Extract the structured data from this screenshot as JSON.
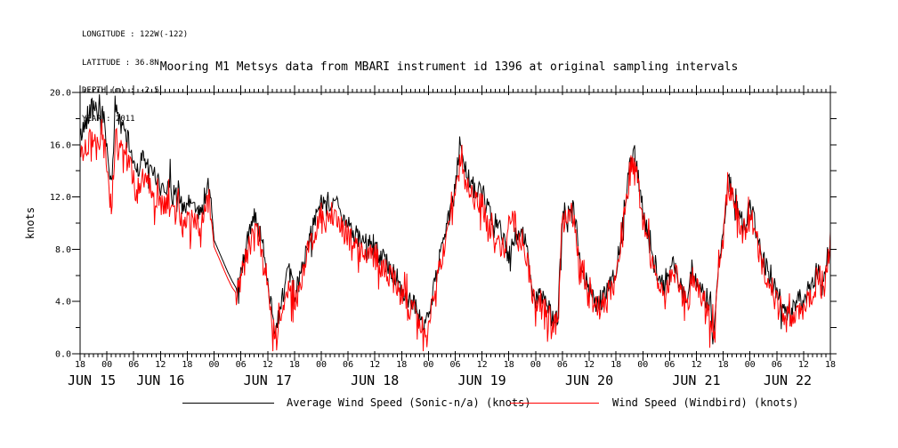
{
  "meta": {
    "lines": [
      "LONGITUDE : 122W(-122)",
      "LATITUDE : 36.8N",
      "DEPTH (m) : -2.5",
      "YEAR : 2011"
    ]
  },
  "title": "Mooring M1 Metsys data from MBARI instrument id 1396 at original sampling intervals",
  "chart_data": {
    "type": "line",
    "title": "Mooring M1 Metsys data from MBARI instrument id 1396 at original sampling intervals",
    "ylabel": "knots",
    "ylim": [
      0,
      20
    ],
    "y_major_ticks": [
      0,
      4,
      8,
      12,
      16,
      20
    ],
    "y_tick_labels": [
      "0.0",
      "4.0",
      "8.0",
      "12.0",
      "16.0",
      "20.0"
    ],
    "y_minor_step_knots": 2,
    "x_start": "2011 JUN 15 18:00",
    "x_end": "2011 JUN 22 18:00",
    "x_span_hours": 168,
    "x_major_tick_hours": 6,
    "x_minor_tick_hours": 1,
    "grid": false,
    "legend_position": "below-axis",
    "hour_tick_labels": [
      "18",
      "00",
      "06",
      "12",
      "18",
      "00",
      "06",
      "12",
      "18",
      "00",
      "06",
      "12",
      "18",
      "00",
      "06",
      "12",
      "18",
      "00",
      "06",
      "12",
      "18",
      "00",
      "06",
      "12",
      "18",
      "00",
      "06",
      "12",
      "18"
    ],
    "date_labels": [
      "JUN 15",
      "JUN 16",
      "JUN 17",
      "JUN 18",
      "JUN 19",
      "JUN 20",
      "JUN 21",
      "JUN 22"
    ],
    "data_gap_hours_since_start": [
      29.4,
      35.0
    ],
    "values_are": "estimated wind speed in knots at 1-hour spacing, hours since 2011 JUN 15 18:00",
    "noise_scatter_knots": [
      0.8,
      1.0
    ],
    "series": [
      {
        "name": "Average Wind Speed (Sonic-n/a) (knots)",
        "color": "#000000",
        "step_hours": 1,
        "values": [
          16.5,
          17.5,
          18.5,
          19.3,
          18.5,
          18.8,
          16.0,
          12.5,
          19.0,
          17.5,
          17.0,
          16.0,
          14.6,
          14.2,
          15.0,
          14.5,
          13.8,
          13.5,
          12.8,
          12.4,
          13.5,
          11.5,
          13.0,
          10.8,
          11.2,
          11.8,
          11.0,
          10.6,
          12.5,
          13.0,
          8.7,
          7.9,
          7.1,
          6.3,
          5.6,
          5.0,
          6.5,
          7.8,
          9.5,
          11.0,
          9.5,
          8.0,
          6.0,
          3.0,
          2.0,
          4.0,
          5.5,
          6.2,
          4.5,
          5.5,
          7.0,
          8.5,
          9.5,
          10.7,
          11.5,
          11.0,
          11.4,
          11.8,
          11.0,
          10.3,
          10.0,
          9.4,
          9.0,
          8.5,
          8.4,
          8.3,
          8.0,
          7.6,
          7.2,
          6.9,
          6.3,
          5.8,
          5.0,
          4.4,
          4.0,
          3.7,
          3.0,
          2.5,
          2.8,
          4.5,
          6.5,
          8.0,
          9.5,
          11.0,
          12.5,
          16.0,
          14.5,
          13.7,
          12.8,
          12.3,
          12.6,
          11.2,
          10.5,
          10.0,
          9.7,
          8.5,
          7.5,
          8.5,
          9.3,
          9.6,
          8.0,
          5.5,
          4.2,
          4.6,
          3.9,
          3.3,
          2.6,
          2.8,
          11.0,
          10.7,
          11.5,
          10.0,
          7.0,
          5.8,
          4.8,
          4.2,
          3.5,
          4.2,
          5.0,
          5.3,
          6.5,
          8.5,
          11.5,
          14.5,
          15.6,
          13.5,
          11.0,
          9.2,
          7.5,
          6.5,
          5.5,
          5.0,
          6.0,
          7.1,
          6.0,
          4.8,
          4.0,
          6.5,
          5.5,
          5.0,
          4.2,
          3.5,
          1.5,
          6.5,
          9.2,
          13.5,
          12.5,
          11.2,
          10.5,
          9.8,
          11.5,
          10.0,
          8.5,
          7.0,
          6.2,
          5.5,
          4.6,
          4.0,
          3.3,
          2.8,
          3.7,
          4.2,
          4.0,
          4.8,
          5.3,
          6.5,
          5.8,
          6.8,
          9.0
        ]
      },
      {
        "name": "Wind Speed (Windbird) (knots)",
        "color": "#ff0000",
        "step_hours": 1,
        "values": [
          15.2,
          16.0,
          16.3,
          16.5,
          16.3,
          16.6,
          14.5,
          10.9,
          16.6,
          15.6,
          15.2,
          14.4,
          13.2,
          12.9,
          13.6,
          13.2,
          12.5,
          12.2,
          11.6,
          11.2,
          12.2,
          10.3,
          11.7,
          9.7,
          10.1,
          10.6,
          9.9,
          9.5,
          11.3,
          11.8,
          8.2,
          7.4,
          6.6,
          5.8,
          5.1,
          4.6,
          5.9,
          7.1,
          8.7,
          10.1,
          8.7,
          7.2,
          5.3,
          2.4,
          1.2,
          3.3,
          4.8,
          5.5,
          3.8,
          4.8,
          6.3,
          7.7,
          8.7,
          9.9,
          10.6,
          10.1,
          10.5,
          10.9,
          10.1,
          9.4,
          9.1,
          8.6,
          8.2,
          7.7,
          7.6,
          7.5,
          7.2,
          6.9,
          6.5,
          6.2,
          5.7,
          5.2,
          4.5,
          3.9,
          3.5,
          3.2,
          2.6,
          2.1,
          2.4,
          4.0,
          5.9,
          7.3,
          8.7,
          10.1,
          11.5,
          14.6,
          13.3,
          12.6,
          11.8,
          11.3,
          11.6,
          10.3,
          9.6,
          9.2,
          8.9,
          7.8,
          9.8,
          10.8,
          8.6,
          8.9,
          7.4,
          5.0,
          3.8,
          4.2,
          3.5,
          2.9,
          2.2,
          2.4,
          10.3,
          10.0,
          10.8,
          9.3,
          6.4,
          5.3,
          4.3,
          3.8,
          3.1,
          3.8,
          4.6,
          4.9,
          6.0,
          7.9,
          10.8,
          13.7,
          14.8,
          12.8,
          10.4,
          8.6,
          7.0,
          6.0,
          5.0,
          4.6,
          5.5,
          6.6,
          5.5,
          4.3,
          3.5,
          6.0,
          5.0,
          4.5,
          3.7,
          3.0,
          1.0,
          6.0,
          8.6,
          12.9,
          11.9,
          10.6,
          9.9,
          9.2,
          10.9,
          9.4,
          7.9,
          6.4,
          5.6,
          4.9,
          4.0,
          3.4,
          2.7,
          2.2,
          3.1,
          3.6,
          3.4,
          4.2,
          4.7,
          5.9,
          5.2,
          6.2,
          8.4
        ]
      }
    ]
  }
}
